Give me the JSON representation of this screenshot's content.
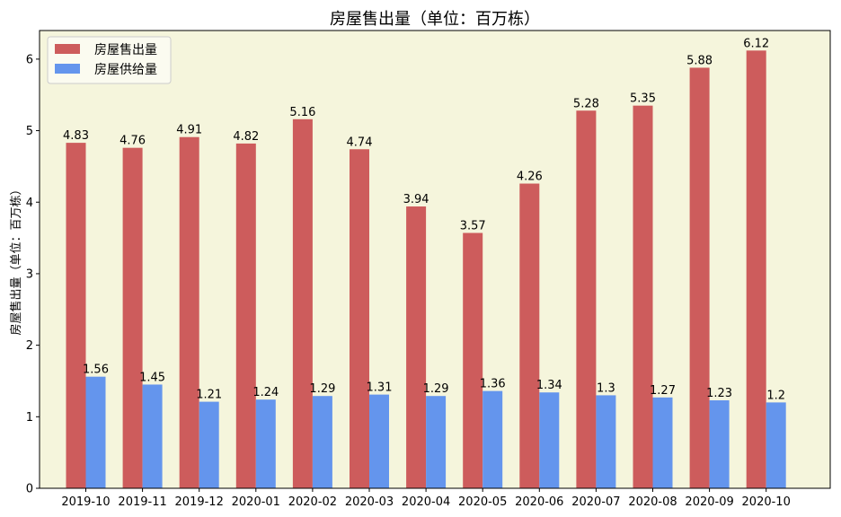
{
  "chart_data": {
    "type": "bar",
    "title": "房屋售出量（单位：百万栋）",
    "xlabel": "",
    "ylabel": "房屋售出量（单位：百万栋）",
    "ylim": [
      0,
      6.4
    ],
    "yticks": [
      0,
      1,
      2,
      3,
      4,
      5,
      6
    ],
    "grid": false,
    "legend_position": "top-left",
    "background_color": "#f5f5dc",
    "categories": [
      "2019-10",
      "2019-11",
      "2019-12",
      "2020-01",
      "2020-02",
      "2020-03",
      "2020-04",
      "2020-05",
      "2020-06",
      "2020-07",
      "2020-08",
      "2020-09",
      "2020-10"
    ],
    "series": [
      {
        "name": "房屋售出量",
        "color": "#cd5c5c",
        "values": [
          4.83,
          4.76,
          4.91,
          4.82,
          5.16,
          4.74,
          3.94,
          3.57,
          4.26,
          5.28,
          5.35,
          5.88,
          6.12
        ],
        "labels": [
          "4.83",
          "4.76",
          "4.91",
          "4.82",
          "5.16",
          "4.74",
          "3.94",
          "3.57",
          "4.26",
          "5.28",
          "5.35",
          "5.88",
          "6.12"
        ]
      },
      {
        "name": "房屋供给量",
        "color": "#6495ed",
        "values": [
          1.56,
          1.45,
          1.21,
          1.24,
          1.29,
          1.31,
          1.29,
          1.36,
          1.34,
          1.3,
          1.27,
          1.23,
          1.2
        ],
        "labels": [
          "1.56",
          "1.45",
          "1.21",
          "1.24",
          "1.29",
          "1.31",
          "1.29",
          "1.36",
          "1.34",
          "1.3",
          "1.27",
          "1.23",
          "1.2"
        ]
      }
    ]
  }
}
